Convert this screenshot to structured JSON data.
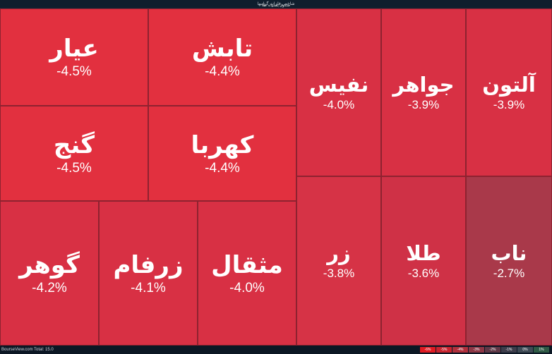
{
  "header": {
    "title": "شاخص فلزات گرانبها",
    "subtitle": "صندوق پشتوانه طلا"
  },
  "tiles": [
    {
      "name": "عیار",
      "change": "-4.5%"
    },
    {
      "name": "تابش",
      "change": "-4.4%"
    },
    {
      "name": "گنج",
      "change": "-4.5%"
    },
    {
      "name": "کهربا",
      "change": "-4.4%"
    },
    {
      "name": "نفیس",
      "change": "-4.0%"
    },
    {
      "name": "جواهر",
      "change": "-3.9%"
    },
    {
      "name": "آلتون",
      "change": "-3.9%"
    },
    {
      "name": "زر",
      "change": "-3.8%"
    },
    {
      "name": "طلا",
      "change": "-3.6%"
    },
    {
      "name": "ناب",
      "change": "-2.7%"
    },
    {
      "name": "گوهر",
      "change": "-4.2%"
    },
    {
      "name": "زرفام",
      "change": "-4.1%"
    },
    {
      "name": "مثقال",
      "change": "-4.0%"
    }
  ],
  "footer": {
    "brand": "BourseView.com",
    "total": "Total: 15.0",
    "legend": [
      {
        "label": "-6%",
        "color": "#e01a22"
      },
      {
        "label": "-5%",
        "color": "#c9242f"
      },
      {
        "label": "-4%",
        "color": "#b0303c"
      },
      {
        "label": "-3%",
        "color": "#8d3645"
      },
      {
        "label": "-2%",
        "color": "#5f3846"
      },
      {
        "label": "-1%",
        "color": "#3d3d4b"
      },
      {
        "label": "0%",
        "color": "#3f4a55"
      },
      {
        "label": "1%",
        "color": "#2f5a45"
      }
    ]
  },
  "colors": {
    "tile_deep": "#e2303f",
    "tile_mid": "#d83044",
    "tile_light": "#cf3146",
    "tile_faded": "#a9394a"
  }
}
